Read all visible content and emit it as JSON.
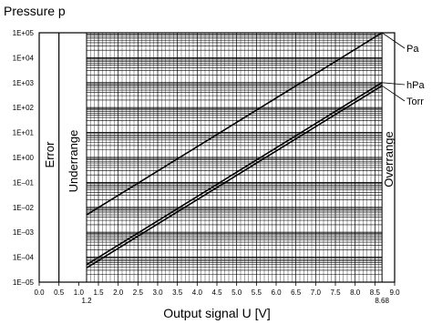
{
  "chart_data": {
    "type": "line",
    "title": "",
    "ylabel": "Pressure p",
    "xlabel": "Output signal U [V]",
    "y_scale": "log",
    "xlim": [
      0.0,
      9.0
    ],
    "ylim": [
      1e-05,
      100000
    ],
    "y_tick_labels": [
      "1E+05",
      "1E+04",
      "1E+03",
      "1E+02",
      "1E+01",
      "1E+00",
      "1E–01",
      "1E–02",
      "1E–03",
      "1E–04",
      "1E–05"
    ],
    "x_tick_labels": [
      "0.0",
      "0.5",
      "1.0",
      "1.5",
      "2.0",
      "2.5",
      "3.0",
      "3.5",
      "4.0",
      "4.5",
      "5.0",
      "5.5",
      "6.0",
      "6.5",
      "7.0",
      "7.5",
      "8.0",
      "8.5",
      "9.0"
    ],
    "x_extra_labels": [
      "1.2",
      "8.68"
    ],
    "grid": true,
    "regions": [
      {
        "label": "Error",
        "from": 0.0,
        "to": 0.5
      },
      {
        "label": "Underrange",
        "from": 0.5,
        "to": 1.2
      },
      {
        "label": "Overrange",
        "from": 8.68,
        "to": 9.0
      }
    ],
    "series": [
      {
        "name": "Pa",
        "x": [
          1.2,
          8.68
        ],
        "y": [
          0.005,
          100000
        ]
      },
      {
        "name": "hPa",
        "x": [
          1.2,
          8.68
        ],
        "y": [
          5e-05,
          1000
        ]
      },
      {
        "name": "Torr",
        "x": [
          1.2,
          8.68
        ],
        "y": [
          3.75e-05,
          750
        ]
      }
    ]
  }
}
